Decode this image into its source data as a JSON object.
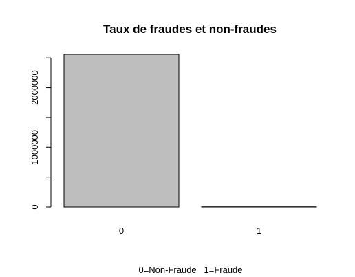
{
  "chart_data": {
    "type": "bar",
    "title": "Taux de fraudes et non-fraudes",
    "categories": [
      "0",
      "1"
    ],
    "values": [
      2560000,
      3300
    ],
    "xlabel": "0=Non-Fraude   1=Fraude",
    "ylabel": "",
    "ylim": [
      0,
      2560000
    ],
    "yticks": [
      0,
      500000,
      1000000,
      1500000,
      2000000,
      2500000
    ],
    "ytick_labels": [
      "0",
      "",
      "1000000",
      "",
      "2000000",
      ""
    ],
    "grid": false,
    "bar_color": "#bebebe",
    "bar_edge_color": "#000000"
  }
}
